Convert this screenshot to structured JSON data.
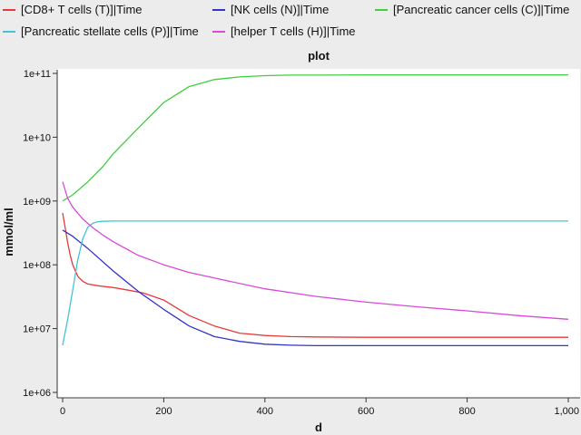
{
  "chart_data": {
    "type": "line",
    "title": "plot",
    "xlabel": "d",
    "ylabel": "mmol/ml",
    "xlim": [
      0,
      1000
    ],
    "ylim": [
      1000000,
      100000000000
    ],
    "yscale": "log",
    "grid": false,
    "legend_position": "top",
    "x_ticks": [
      {
        "value": 0,
        "label": "0"
      },
      {
        "value": 200,
        "label": "200"
      },
      {
        "value": 400,
        "label": "400"
      },
      {
        "value": 600,
        "label": "600"
      },
      {
        "value": 800,
        "label": "800"
      },
      {
        "value": 1000,
        "label": "1,000"
      }
    ],
    "y_ticks": [
      {
        "value": 1000000,
        "label": "1e+06"
      },
      {
        "value": 10000000,
        "label": "1e+07"
      },
      {
        "value": 100000000,
        "label": "1e+08"
      },
      {
        "value": 1000000000,
        "label": "1e+09"
      },
      {
        "value": 10000000000,
        "label": "1e+10"
      },
      {
        "value": 100000000000,
        "label": "1e+11"
      }
    ],
    "series": [
      {
        "name": "[CD8+ T cells (T)]|Time",
        "color": "#e8393a",
        "x": [
          0,
          5,
          10,
          15,
          20,
          30,
          40,
          50,
          70,
          100,
          130,
          160,
          200,
          250,
          300,
          350,
          400,
          450,
          500,
          600,
          700,
          800,
          900,
          1000
        ],
        "y": [
          650000000,
          380000000,
          220000000,
          140000000,
          100000000,
          66000000,
          55000000,
          50000000,
          47000000,
          44000000,
          40000000,
          36000000,
          28000000,
          16000000,
          11000000,
          8500000,
          7800000,
          7500000,
          7400000,
          7300000,
          7300000,
          7300000,
          7300000,
          7300000
        ]
      },
      {
        "name": "[NK cells (N)]|Time",
        "color": "#3434c8",
        "x": [
          0,
          20,
          50,
          100,
          150,
          200,
          250,
          300,
          350,
          400,
          450,
          500,
          600,
          700,
          800,
          900,
          1000
        ],
        "y": [
          350000000,
          280000000,
          180000000,
          80000000,
          38000000,
          20000000,
          11000000,
          7500000,
          6300000,
          5700000,
          5500000,
          5400000,
          5400000,
          5400000,
          5400000,
          5400000,
          5400000
        ]
      },
      {
        "name": "[Pancreatic cancer cells (C)]|Time",
        "color": "#3fcf3f",
        "x": [
          0,
          20,
          50,
          80,
          100,
          150,
          200,
          250,
          300,
          350,
          400,
          450,
          500,
          600,
          700,
          800,
          900,
          1000
        ],
        "y": [
          1000000000,
          1250000000,
          2000000000,
          3500000000,
          5500000000,
          14000000000,
          35000000000,
          62000000000,
          80000000000,
          88000000000,
          92000000000,
          94000000000,
          94000000000,
          95000000000,
          95000000000,
          95000000000,
          95000000000,
          95000000000
        ]
      },
      {
        "name": "[Pancreatic stellate cells (P)]|Time",
        "color": "#40c4d8",
        "x": [
          0,
          10,
          20,
          30,
          40,
          50,
          60,
          70,
          80,
          100,
          200,
          400,
          600,
          800,
          1000
        ],
        "y": [
          5500000,
          14000000,
          40000000,
          120000000,
          260000000,
          390000000,
          450000000,
          475000000,
          480000000,
          485000000,
          485000000,
          485000000,
          485000000,
          485000000,
          485000000
        ]
      },
      {
        "name": "[helper T cells (H)]|Time",
        "color": "#d84ad8",
        "x": [
          0,
          10,
          20,
          40,
          60,
          80,
          100,
          150,
          200,
          250,
          300,
          400,
          500,
          600,
          700,
          800,
          900,
          1000
        ],
        "y": [
          2000000000,
          1100000000,
          800000000,
          520000000,
          380000000,
          290000000,
          230000000,
          140000000,
          100000000,
          76000000,
          62000000,
          42000000,
          32000000,
          26000000,
          22000000,
          19000000,
          16000000,
          14000000
        ]
      }
    ]
  }
}
